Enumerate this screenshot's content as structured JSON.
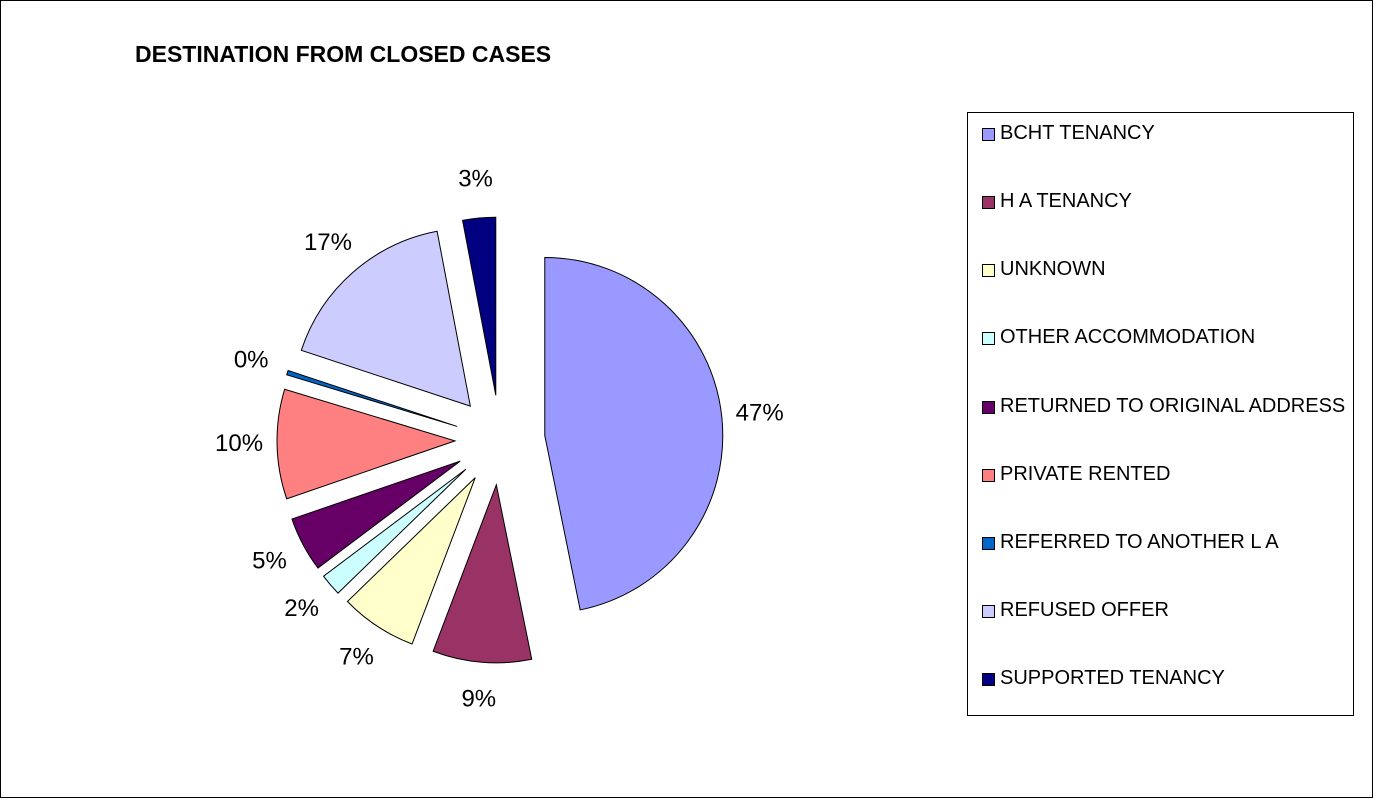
{
  "chart_data": {
    "type": "pie",
    "title": "DESTINATION FROM CLOSED CASES",
    "categories": [
      "BCHT TENANCY",
      "H A TENANCY",
      "UNKNOWN",
      "OTHER ACCOMMODATION",
      "RETURNED TO ORIGINAL ADDRESS",
      "PRIVATE RENTED",
      "REFERRED TO ANOTHER L A",
      "REFUSED OFFER",
      "SUPPORTED TENANCY"
    ],
    "values": [
      47,
      9,
      7,
      2,
      5,
      10,
      0.4,
      17,
      3
    ],
    "value_labels": [
      "47%",
      "9%",
      "7%",
      "2%",
      "5%",
      "10%",
      "0%",
      "17%",
      "3%"
    ],
    "colors": [
      "#9999ff",
      "#993366",
      "#ffffcc",
      "#ccffff",
      "#660066",
      "#ff8080",
      "#0066cc",
      "#ccccff",
      "#000080"
    ],
    "legend": "right"
  }
}
